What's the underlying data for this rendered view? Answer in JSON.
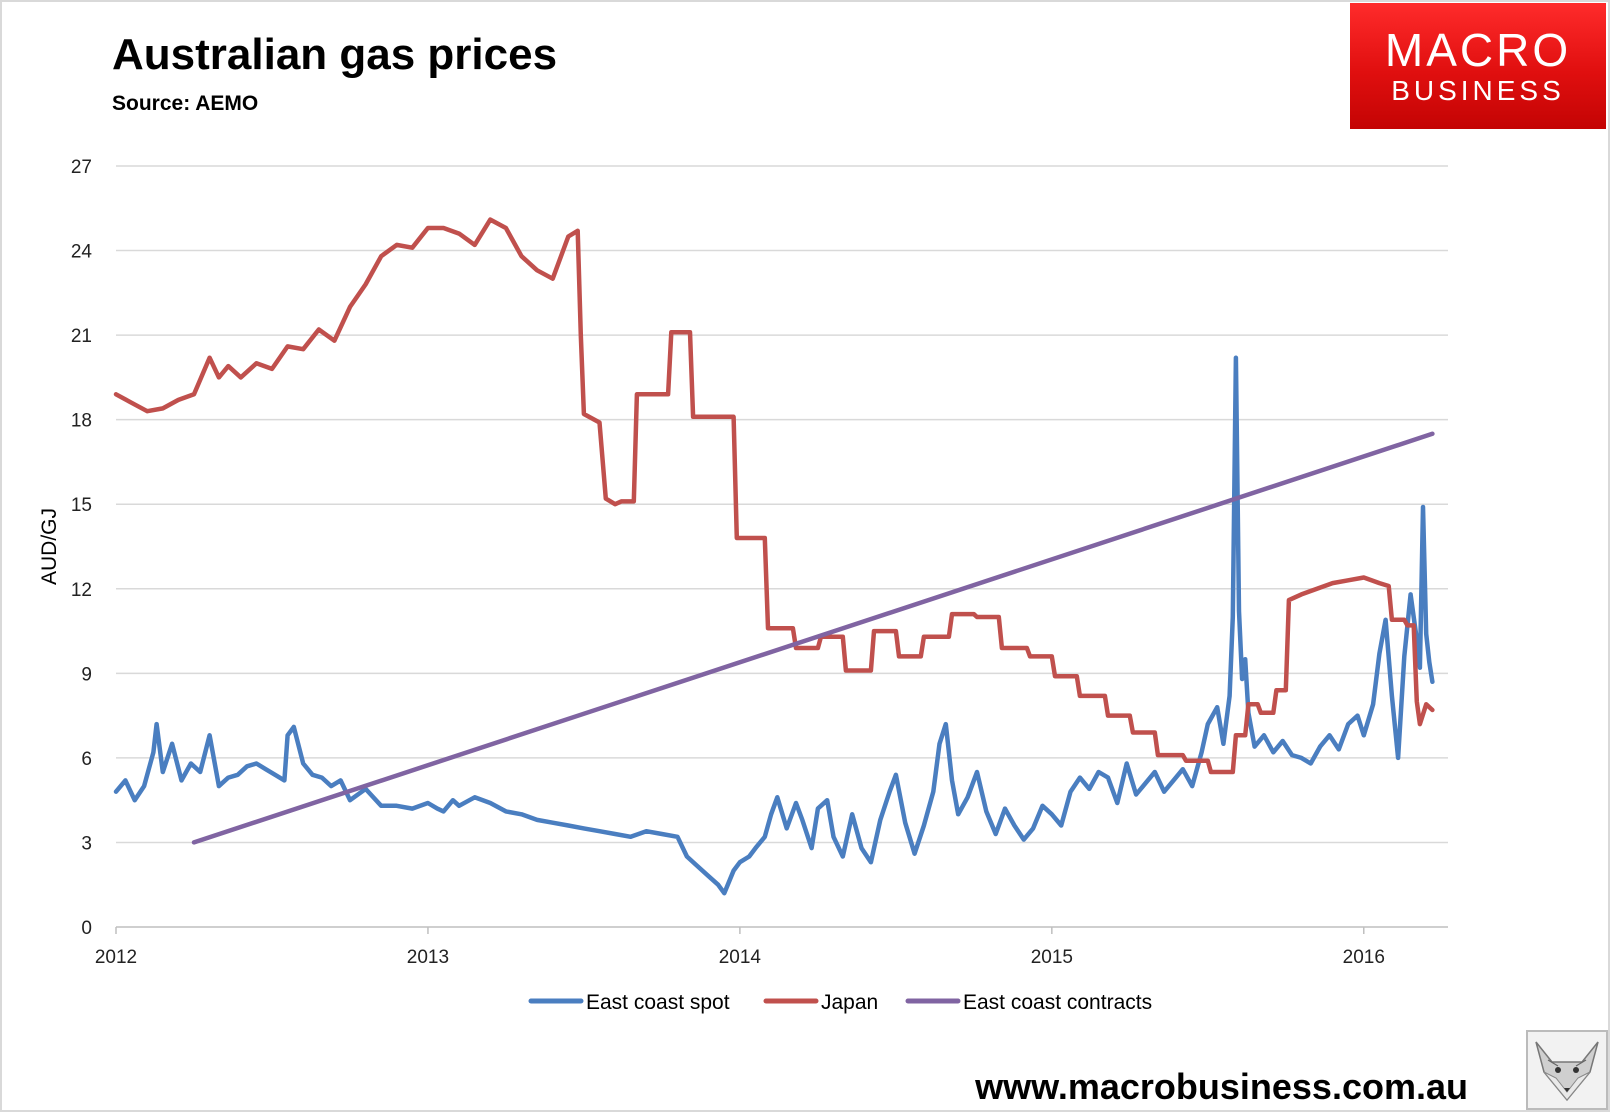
{
  "header": {
    "title": "Australian gas prices",
    "subtitle": "Source: AEMO"
  },
  "logo": {
    "line1": "MACRO",
    "line2": "BUSINESS"
  },
  "footer": {
    "url": "www.macrobusiness.com.au"
  },
  "colors": {
    "spot": "#4a7ec0",
    "japan": "#c0504d",
    "contracts": "#8064a2",
    "grid": "#d9d9d9",
    "logo_red": "#e30f0f"
  },
  "chart_data": {
    "type": "line",
    "title": "Australian gas prices",
    "xlabel": "",
    "ylabel": "AUD/GJ",
    "xlim": [
      2012,
      2016.27
    ],
    "ylim": [
      0,
      27
    ],
    "yticks": [
      0,
      3,
      6,
      9,
      12,
      15,
      18,
      21,
      24,
      27
    ],
    "xticks": [
      2012,
      2013,
      2014,
      2015,
      2016
    ],
    "grid": true,
    "legend_position": "bottom",
    "series": [
      {
        "name": "East coast spot",
        "x": [
          2012.0,
          2012.03,
          2012.06,
          2012.09,
          2012.12,
          2012.13,
          2012.15,
          2012.18,
          2012.21,
          2012.24,
          2012.27,
          2012.3,
          2012.33,
          2012.36,
          2012.39,
          2012.42,
          2012.45,
          2012.48,
          2012.51,
          2012.54,
          2012.55,
          2012.57,
          2012.6,
          2012.63,
          2012.66,
          2012.69,
          2012.72,
          2012.75,
          2012.8,
          2012.85,
          2012.9,
          2012.95,
          2013.0,
          2013.03,
          2013.05,
          2013.08,
          2013.1,
          2013.15,
          2013.2,
          2013.25,
          2013.3,
          2013.35,
          2013.4,
          2013.45,
          2013.5,
          2013.55,
          2013.6,
          2013.65,
          2013.7,
          2013.75,
          2013.8,
          2013.83,
          2013.86,
          2013.9,
          2013.93,
          2013.95,
          2013.98,
          2014.0,
          2014.03,
          2014.05,
          2014.08,
          2014.1,
          2014.12,
          2014.15,
          2014.18,
          2014.2,
          2014.23,
          2014.25,
          2014.28,
          2014.3,
          2014.33,
          2014.36,
          2014.39,
          2014.42,
          2014.45,
          2014.48,
          2014.5,
          2014.53,
          2014.56,
          2014.59,
          2014.62,
          2014.64,
          2014.66,
          2014.68,
          2014.7,
          2014.73,
          2014.76,
          2014.79,
          2014.82,
          2014.85,
          2014.88,
          2014.91,
          2014.94,
          2014.97,
          2015.0,
          2015.03,
          2015.06,
          2015.09,
          2015.12,
          2015.15,
          2015.18,
          2015.21,
          2015.24,
          2015.27,
          2015.3,
          2015.33,
          2015.36,
          2015.39,
          2015.42,
          2015.45,
          2015.48,
          2015.5,
          2015.53,
          2015.55,
          2015.57,
          2015.58,
          2015.59,
          2015.6,
          2015.61,
          2015.62,
          2015.63,
          2015.65,
          2015.68,
          2015.71,
          2015.74,
          2015.77,
          2015.8,
          2015.83,
          2015.86,
          2015.89,
          2015.92,
          2015.95,
          2015.98,
          2016.0,
          2016.03,
          2016.05,
          2016.07,
          2016.09,
          2016.11,
          2016.13,
          2016.15,
          2016.17,
          2016.18,
          2016.19,
          2016.2,
          2016.21,
          2016.22
        ],
        "values": [
          4.8,
          5.2,
          4.5,
          5.0,
          6.2,
          7.2,
          5.5,
          6.5,
          5.2,
          5.8,
          5.5,
          6.8,
          5.0,
          5.3,
          5.4,
          5.7,
          5.8,
          5.6,
          5.4,
          5.2,
          6.8,
          7.1,
          5.8,
          5.4,
          5.3,
          5.0,
          5.2,
          4.5,
          4.9,
          4.3,
          4.3,
          4.2,
          4.4,
          4.2,
          4.1,
          4.5,
          4.3,
          4.6,
          4.4,
          4.1,
          4.0,
          3.8,
          3.7,
          3.6,
          3.5,
          3.4,
          3.3,
          3.2,
          3.4,
          3.3,
          3.2,
          2.5,
          2.2,
          1.8,
          1.5,
          1.2,
          2.0,
          2.3,
          2.5,
          2.8,
          3.2,
          4.0,
          4.6,
          3.5,
          4.4,
          3.8,
          2.8,
          4.2,
          4.5,
          3.2,
          2.5,
          4.0,
          2.8,
          2.3,
          3.8,
          4.8,
          5.4,
          3.7,
          2.6,
          3.6,
          4.8,
          6.5,
          7.2,
          5.2,
          4.0,
          4.6,
          5.5,
          4.1,
          3.3,
          4.2,
          3.6,
          3.1,
          3.5,
          4.3,
          4.0,
          3.6,
          4.8,
          5.3,
          4.9,
          5.5,
          5.3,
          4.4,
          5.8,
          4.7,
          5.1,
          5.5,
          4.8,
          5.2,
          5.6,
          5.0,
          6.2,
          7.2,
          7.8,
          6.5,
          8.2,
          11.0,
          20.2,
          11.2,
          8.8,
          9.5,
          7.6,
          6.4,
          6.8,
          6.2,
          6.6,
          6.1,
          6.0,
          5.8,
          6.4,
          6.8,
          6.3,
          7.2,
          7.5,
          6.8,
          7.9,
          9.7,
          10.9,
          8.2,
          6.0,
          9.6,
          11.8,
          10.2,
          9.2,
          14.9,
          10.4,
          9.4,
          8.7
        ]
      },
      {
        "name": "Japan",
        "x": [
          2012.0,
          2012.05,
          2012.1,
          2012.15,
          2012.2,
          2012.25,
          2012.3,
          2012.33,
          2012.36,
          2012.4,
          2012.45,
          2012.5,
          2012.55,
          2012.6,
          2012.65,
          2012.7,
          2012.75,
          2012.8,
          2012.85,
          2012.9,
          2012.95,
          2013.0,
          2013.05,
          2013.1,
          2013.15,
          2013.2,
          2013.25,
          2013.3,
          2013.35,
          2013.4,
          2013.45,
          2013.48,
          2013.49,
          2013.5,
          2013.55,
          2013.57,
          2013.6,
          2013.62,
          2013.63,
          2013.66,
          2013.67,
          2013.72,
          2013.77,
          2013.78,
          2013.84,
          2013.85,
          2013.98,
          2013.99,
          2014.08,
          2014.09,
          2014.17,
          2014.18,
          2014.25,
          2014.26,
          2014.33,
          2014.34,
          2014.42,
          2014.43,
          2014.5,
          2014.51,
          2014.58,
          2014.59,
          2014.67,
          2014.68,
          2014.75,
          2014.76,
          2014.83,
          2014.84,
          2014.92,
          2014.93,
          2015.0,
          2015.01,
          2015.08,
          2015.09,
          2015.17,
          2015.18,
          2015.25,
          2015.26,
          2015.33,
          2015.34,
          2015.42,
          2015.43,
          2015.5,
          2015.51,
          2015.58,
          2015.59,
          2015.62,
          2015.63,
          2015.66,
          2015.67,
          2015.71,
          2015.72,
          2015.75,
          2015.76,
          2015.8,
          2015.85,
          2015.9,
          2015.95,
          2016.0,
          2016.05,
          2016.08,
          2016.09,
          2016.13,
          2016.14,
          2016.16,
          2016.17,
          2016.18,
          2016.2,
          2016.22
        ],
        "values": [
          18.9,
          18.6,
          18.3,
          18.4,
          18.7,
          18.9,
          20.2,
          19.5,
          19.9,
          19.5,
          20.0,
          19.8,
          20.6,
          20.5,
          21.2,
          20.8,
          22.0,
          22.8,
          23.8,
          24.2,
          24.1,
          24.8,
          24.8,
          24.6,
          24.2,
          25.1,
          24.8,
          23.8,
          23.3,
          23.0,
          24.5,
          24.7,
          21.0,
          18.2,
          17.9,
          15.2,
          15.0,
          15.1,
          15.1,
          15.1,
          18.9,
          18.9,
          18.9,
          21.1,
          21.1,
          18.1,
          18.1,
          13.8,
          13.8,
          10.6,
          10.6,
          9.9,
          9.9,
          10.3,
          10.3,
          9.1,
          9.1,
          10.5,
          10.5,
          9.6,
          9.6,
          10.3,
          10.3,
          11.1,
          11.1,
          11.0,
          11.0,
          9.9,
          9.9,
          9.6,
          9.6,
          8.9,
          8.9,
          8.2,
          8.2,
          7.5,
          7.5,
          6.9,
          6.9,
          6.1,
          6.1,
          5.9,
          5.9,
          5.5,
          5.5,
          6.8,
          6.8,
          7.9,
          7.9,
          7.6,
          7.6,
          8.4,
          8.4,
          11.6,
          11.8,
          12.0,
          12.2,
          12.3,
          12.4,
          12.2,
          12.1,
          10.9,
          10.9,
          10.7,
          10.7,
          8.0,
          7.2,
          7.9,
          7.7
        ]
      },
      {
        "name": "East coast contracts",
        "x": [
          2012.25,
          2016.22
        ],
        "values": [
          3.0,
          17.5
        ]
      }
    ]
  }
}
